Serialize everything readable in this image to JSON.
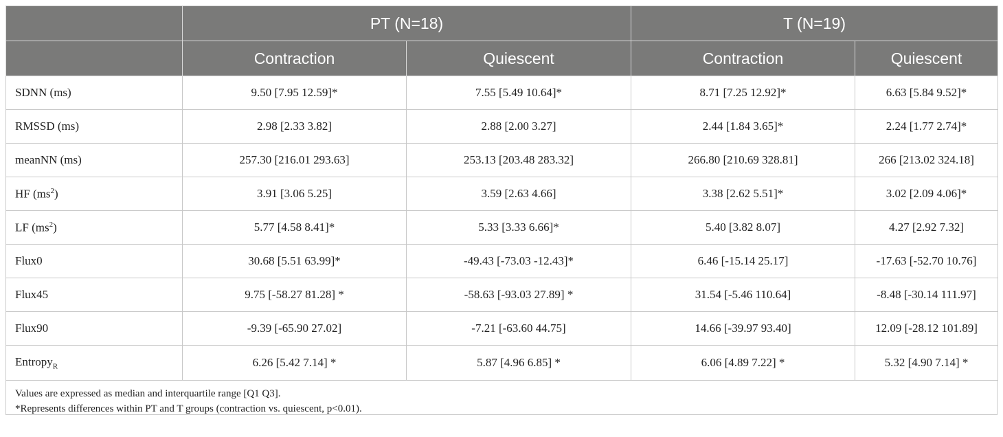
{
  "header": {
    "group_pt": "PT (N=18)",
    "group_t": "T (N=19)",
    "sub": [
      "Contraction",
      "Quiescent",
      "Contraction",
      "Quiescent"
    ]
  },
  "rows": [
    {
      "label": "SDNN (ms)",
      "values": [
        "9.50 [7.95 12.59]*",
        "7.55 [5.49 10.64]*",
        "8.71 [7.25 12.92]*",
        "6.63 [5.84 9.52]*"
      ]
    },
    {
      "label": "RMSSD (ms)",
      "values": [
        "2.98 [2.33 3.82]",
        "2.88 [2.00 3.27]",
        "2.44 [1.84 3.65]*",
        "2.24 [1.77 2.74]*"
      ]
    },
    {
      "label": "meanNN (ms)",
      "values": [
        "257.30 [216.01 293.63]",
        "253.13 [203.48 283.32]",
        "266.80 [210.69 328.81]",
        "266 [213.02 324.18]"
      ]
    },
    {
      "label_base": "HF (ms",
      "label_sup": "2",
      "label_end": ")",
      "values": [
        "3.91 [3.06 5.25]",
        "3.59 [2.63 4.66]",
        "3.38 [2.62 5.51]*",
        "3.02 [2.09 4.06]*"
      ]
    },
    {
      "label_base": "LF (ms",
      "label_sup": "2",
      "label_end": ")",
      "values": [
        "5.77 [4.58 8.41]*",
        "5.33 [3.33 6.66]*",
        "5.40 [3.82 8.07]",
        "4.27 [2.92 7.32]"
      ]
    },
    {
      "label": "Flux0",
      "values": [
        "30.68 [5.51 63.99]*",
        "-49.43 [-73.03 -12.43]*",
        "6.46 [-15.14 25.17]",
        "-17.63 [-52.70 10.76]"
      ]
    },
    {
      "label": "Flux45",
      "values": [
        "9.75 [-58.27 81.28] *",
        "-58.63 [-93.03 27.89] *",
        "31.54 [-5.46 110.64]",
        "-8.48 [-30.14 111.97]"
      ]
    },
    {
      "label": "Flux90",
      "values": [
        "-9.39 [-65.90 27.02]",
        "-7.21 [-63.60 44.75]",
        "14.66 [-39.97 93.40]",
        "12.09 [-28.12 101.89]"
      ]
    },
    {
      "label_base": "Entropy",
      "label_sub": "R",
      "values": [
        "6.26 [5.42 7.14] *",
        "5.87 [4.96 6.85] *",
        "6.06 [4.89 7.22] *",
        "5.32 [4.90 7.14] *"
      ]
    }
  ],
  "footnotes": [
    "Values are expressed as median and interquartile range [Q1 Q3].",
    "*Represents differences within PT and T groups (contraction vs. quiescent, p<0.01)."
  ],
  "colors": {
    "header_bg": "#7a7a79",
    "header_text": "#ffffff",
    "border": "#c8c8c8"
  }
}
